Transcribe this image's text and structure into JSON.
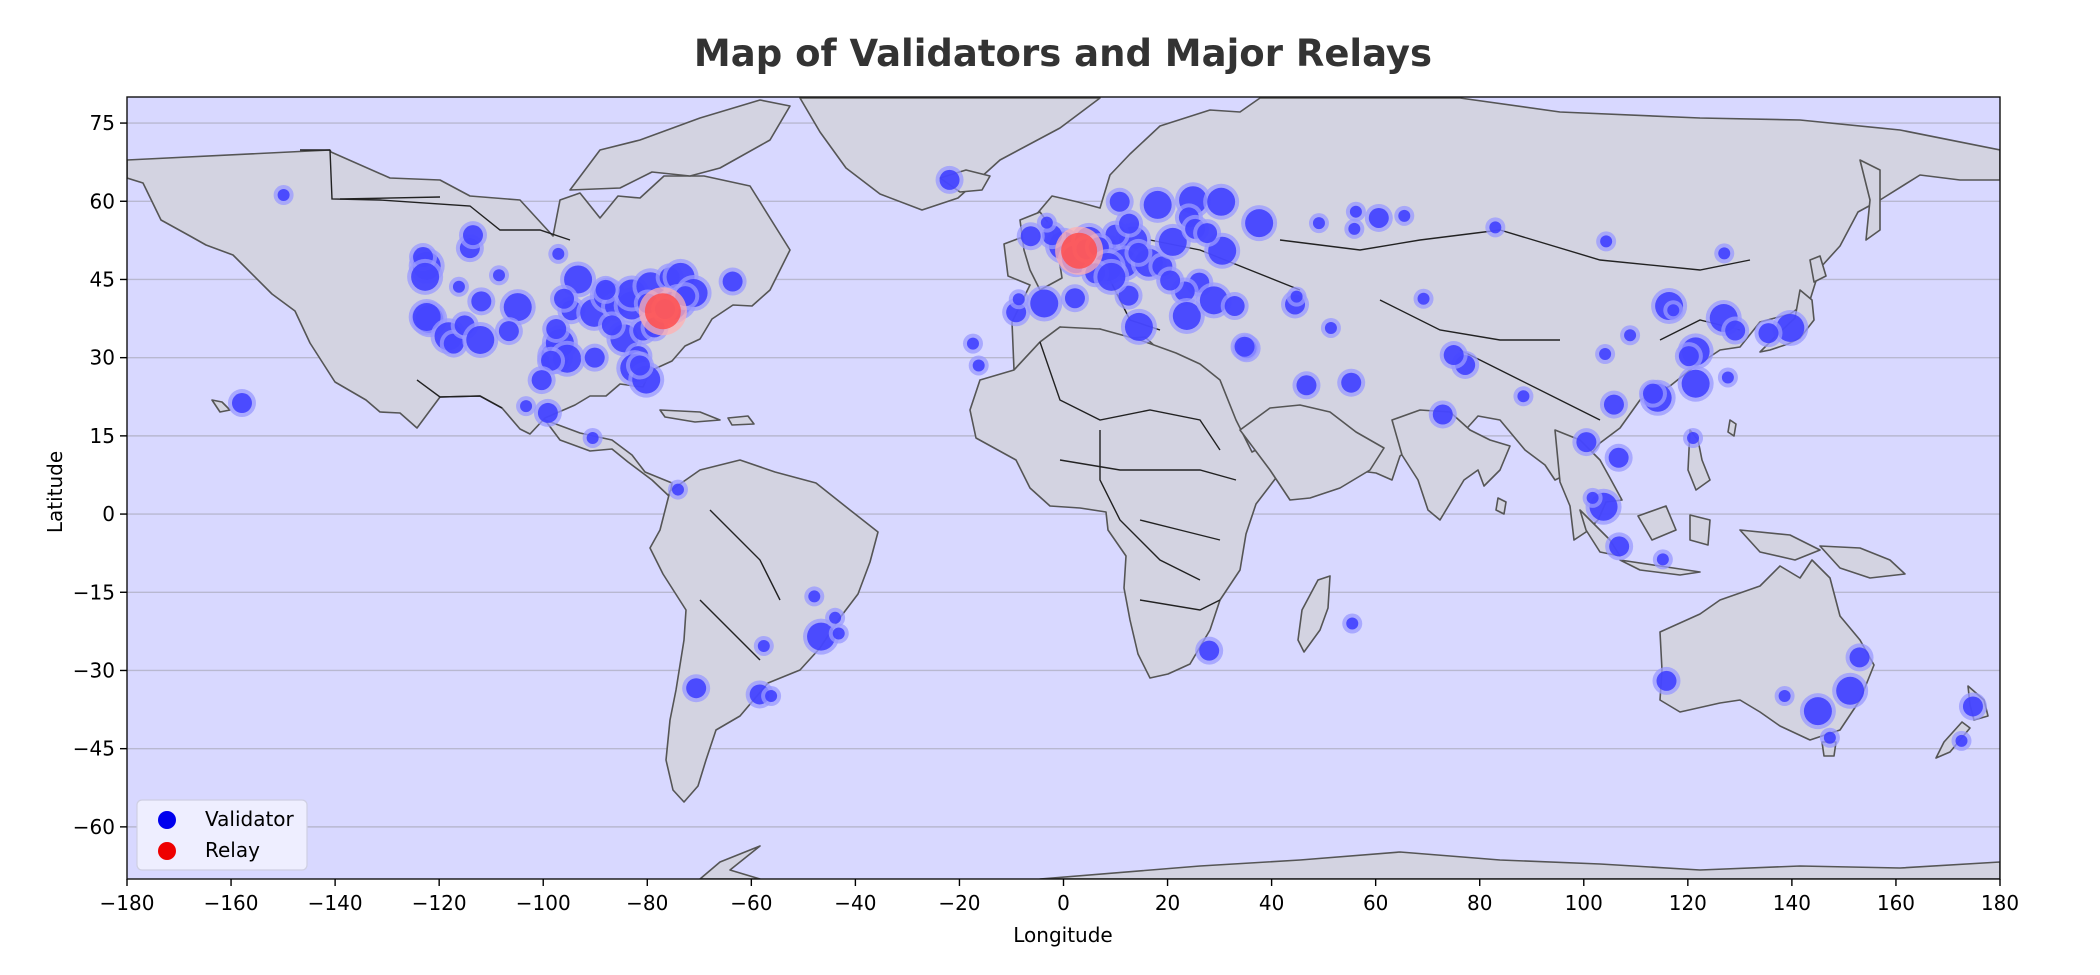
{
  "colors": {
    "ocean": "#d8d8ff",
    "land": "#d3d3e1",
    "validator": "#3b3bff",
    "validator_halo": "#9a9aff",
    "relay": "#ff4d4d",
    "relay_halo": "#ffb0b0"
  },
  "chart_data": {
    "type": "scatter",
    "title": "Map of Validators and Major Relays",
    "xlabel": "Longitude",
    "ylabel": "Latitude",
    "xlim": [
      -180,
      180
    ],
    "ylim": [
      -70,
      80
    ],
    "xticks": [
      -180,
      -160,
      -140,
      -120,
      -100,
      -80,
      -60,
      -40,
      -20,
      0,
      20,
      40,
      60,
      80,
      100,
      120,
      140,
      160,
      180
    ],
    "yticks": [
      75,
      60,
      45,
      30,
      15,
      0,
      -15,
      -30,
      -45,
      -60
    ],
    "xtick_labels": [
      "−180",
      "−160",
      "−140",
      "−120",
      "−100",
      "−80",
      "−60",
      "−40",
      "−20",
      "0",
      "20",
      "40",
      "60",
      "80",
      "100",
      "120",
      "140",
      "160",
      "180"
    ],
    "ytick_labels": [
      "75",
      "60",
      "45",
      "30",
      "15",
      "0",
      "−15",
      "−30",
      "−45",
      "−60"
    ],
    "grid": "horizontal",
    "legend": {
      "position": "lower-left",
      "entries": [
        {
          "label": "Validator",
          "color": "#0000ee"
        },
        {
          "label": "Relay",
          "color": "#ee0000"
        }
      ]
    },
    "series": [
      {
        "name": "Validator",
        "points": [
          {
            "lon": -122.4,
            "lat": 47.6,
            "size": 3
          },
          {
            "lon": -123.1,
            "lat": 49.3,
            "size": 2
          },
          {
            "lon": -122.7,
            "lat": 45.5,
            "size": 3
          },
          {
            "lon": -121.9,
            "lat": 37.4,
            "size": 3
          },
          {
            "lon": -122.4,
            "lat": 37.8,
            "size": 3
          },
          {
            "lon": -118.2,
            "lat": 34.1,
            "size": 3
          },
          {
            "lon": -117.2,
            "lat": 32.7,
            "size": 2
          },
          {
            "lon": -115.1,
            "lat": 36.2,
            "size": 2
          },
          {
            "lon": -112.1,
            "lat": 33.4,
            "size": 3
          },
          {
            "lon": -111.9,
            "lat": 40.8,
            "size": 2
          },
          {
            "lon": -114.1,
            "lat": 51.0,
            "size": 2
          },
          {
            "lon": -113.5,
            "lat": 53.5,
            "size": 2
          },
          {
            "lon": -116.2,
            "lat": 43.6,
            "size": 1
          },
          {
            "lon": -104.9,
            "lat": 39.7,
            "size": 3
          },
          {
            "lon": -106.6,
            "lat": 35.1,
            "size": 2
          },
          {
            "lon": -108.5,
            "lat": 45.8,
            "size": 1
          },
          {
            "lon": -97.7,
            "lat": 30.3,
            "size": 3
          },
          {
            "lon": -96.8,
            "lat": 32.8,
            "size": 3
          },
          {
            "lon": -95.4,
            "lat": 29.8,
            "size": 3
          },
          {
            "lon": -98.5,
            "lat": 29.4,
            "size": 2
          },
          {
            "lon": -97.5,
            "lat": 35.5,
            "size": 2
          },
          {
            "lon": -94.6,
            "lat": 39.1,
            "size": 2
          },
          {
            "lon": -93.3,
            "lat": 45.0,
            "size": 3
          },
          {
            "lon": -97.1,
            "lat": 49.9,
            "size": 1
          },
          {
            "lon": -96.0,
            "lat": 41.3,
            "size": 2
          },
          {
            "lon": -90.2,
            "lat": 38.6,
            "size": 3
          },
          {
            "lon": -87.6,
            "lat": 41.9,
            "size": 3
          },
          {
            "lon": -86.2,
            "lat": 39.8,
            "size": 2
          },
          {
            "lon": -83.0,
            "lat": 40.0,
            "size": 3
          },
          {
            "lon": -83.0,
            "lat": 42.3,
            "size": 3
          },
          {
            "lon": -84.4,
            "lat": 33.7,
            "size": 3
          },
          {
            "lon": -86.8,
            "lat": 36.2,
            "size": 2
          },
          {
            "lon": -90.1,
            "lat": 30.0,
            "size": 2
          },
          {
            "lon": -81.7,
            "lat": 30.3,
            "size": 2
          },
          {
            "lon": -82.5,
            "lat": 28.0,
            "size": 3
          },
          {
            "lon": -80.2,
            "lat": 25.8,
            "size": 3
          },
          {
            "lon": -81.4,
            "lat": 28.5,
            "size": 2
          },
          {
            "lon": -80.8,
            "lat": 35.2,
            "size": 2
          },
          {
            "lon": -79.4,
            "lat": 43.7,
            "size": 3
          },
          {
            "lon": -75.7,
            "lat": 45.4,
            "size": 2
          },
          {
            "lon": -73.6,
            "lat": 45.5,
            "size": 3
          },
          {
            "lon": -74.0,
            "lat": 40.7,
            "size": 3
          },
          {
            "lon": -75.2,
            "lat": 39.9,
            "size": 3
          },
          {
            "lon": -71.1,
            "lat": 42.4,
            "size": 3
          },
          {
            "lon": -79.9,
            "lat": 40.4,
            "size": 2
          },
          {
            "lon": -78.6,
            "lat": 35.8,
            "size": 2
          },
          {
            "lon": -76.6,
            "lat": 39.3,
            "size": 2
          },
          {
            "lon": -72.7,
            "lat": 41.8,
            "size": 2
          },
          {
            "lon": -63.6,
            "lat": 44.6,
            "size": 2
          },
          {
            "lon": -88.0,
            "lat": 43.0,
            "size": 2
          },
          {
            "lon": -157.9,
            "lat": 21.3,
            "size": 2
          },
          {
            "lon": -149.9,
            "lat": 61.2,
            "size": 1
          },
          {
            "lon": -99.1,
            "lat": 19.4,
            "size": 2
          },
          {
            "lon": -103.3,
            "lat": 20.7,
            "size": 1
          },
          {
            "lon": -100.3,
            "lat": 25.7,
            "size": 2
          },
          {
            "lon": -90.5,
            "lat": 14.6,
            "size": 1
          },
          {
            "lon": -74.1,
            "lat": 4.7,
            "size": 1
          },
          {
            "lon": -47.9,
            "lat": -15.8,
            "size": 1
          },
          {
            "lon": -46.6,
            "lat": -23.5,
            "size": 3
          },
          {
            "lon": -43.2,
            "lat": -22.9,
            "size": 1
          },
          {
            "lon": -43.9,
            "lat": -19.9,
            "size": 1
          },
          {
            "lon": -58.4,
            "lat": -34.6,
            "size": 2
          },
          {
            "lon": -56.2,
            "lat": -34.9,
            "size": 1
          },
          {
            "lon": -70.6,
            "lat": -33.4,
            "size": 2
          },
          {
            "lon": -57.6,
            "lat": -25.3,
            "size": 1
          },
          {
            "lon": -21.9,
            "lat": 64.1,
            "size": 2
          },
          {
            "lon": -9.1,
            "lat": 38.7,
            "size": 2
          },
          {
            "lon": -3.7,
            "lat": 40.4,
            "size": 3
          },
          {
            "lon": -8.6,
            "lat": 41.2,
            "size": 1
          },
          {
            "lon": 2.2,
            "lat": 41.4,
            "size": 2
          },
          {
            "lon": -0.1,
            "lat": 51.5,
            "size": 3
          },
          {
            "lon": -2.2,
            "lat": 53.5,
            "size": 2
          },
          {
            "lon": -3.2,
            "lat": 55.9,
            "size": 1
          },
          {
            "lon": -6.3,
            "lat": 53.3,
            "size": 2
          },
          {
            "lon": 2.4,
            "lat": 48.9,
            "size": 3
          },
          {
            "lon": 4.9,
            "lat": 52.4,
            "size": 3
          },
          {
            "lon": 4.4,
            "lat": 50.8,
            "size": 2
          },
          {
            "lon": 8.7,
            "lat": 50.1,
            "size": 3
          },
          {
            "lon": 13.4,
            "lat": 52.5,
            "size": 3
          },
          {
            "lon": 11.6,
            "lat": 48.1,
            "size": 3
          },
          {
            "lon": 10.0,
            "lat": 53.6,
            "size": 2
          },
          {
            "lon": 6.8,
            "lat": 51.2,
            "size": 2
          },
          {
            "lon": 8.5,
            "lat": 47.4,
            "size": 3
          },
          {
            "lon": 6.1,
            "lat": 46.2,
            "size": 2
          },
          {
            "lon": 16.4,
            "lat": 48.2,
            "size": 3
          },
          {
            "lon": 14.4,
            "lat": 50.1,
            "size": 2
          },
          {
            "lon": 19.0,
            "lat": 47.5,
            "size": 2
          },
          {
            "lon": 21.0,
            "lat": 52.2,
            "size": 3
          },
          {
            "lon": 12.6,
            "lat": 55.7,
            "size": 2
          },
          {
            "lon": 18.1,
            "lat": 59.3,
            "size": 3
          },
          {
            "lon": 10.8,
            "lat": 59.9,
            "size": 2
          },
          {
            "lon": 24.9,
            "lat": 60.2,
            "size": 3
          },
          {
            "lon": 24.1,
            "lat": 56.9,
            "size": 2
          },
          {
            "lon": 25.3,
            "lat": 54.7,
            "size": 2
          },
          {
            "lon": 30.5,
            "lat": 50.5,
            "size": 3
          },
          {
            "lon": 26.1,
            "lat": 44.4,
            "size": 2
          },
          {
            "lon": 23.3,
            "lat": 42.7,
            "size": 2
          },
          {
            "lon": 20.5,
            "lat": 44.8,
            "size": 2
          },
          {
            "lon": 23.7,
            "lat": 38.0,
            "size": 3
          },
          {
            "lon": 12.5,
            "lat": 41.9,
            "size": 2
          },
          {
            "lon": 9.2,
            "lat": 45.5,
            "size": 3
          },
          {
            "lon": 14.5,
            "lat": 35.9,
            "size": 3
          },
          {
            "lon": 28.9,
            "lat": 41.0,
            "size": 3
          },
          {
            "lon": 32.9,
            "lat": 39.9,
            "size": 2
          },
          {
            "lon": 37.6,
            "lat": 55.8,
            "size": 3
          },
          {
            "lon": 30.3,
            "lat": 59.9,
            "size": 3
          },
          {
            "lon": 27.6,
            "lat": 53.9,
            "size": 2
          },
          {
            "lon": 44.5,
            "lat": 40.2,
            "size": 2
          },
          {
            "lon": 44.8,
            "lat": 41.7,
            "size": 1
          },
          {
            "lon": 49.1,
            "lat": 55.8,
            "size": 1
          },
          {
            "lon": 35.2,
            "lat": 31.8,
            "size": 2
          },
          {
            "lon": 34.8,
            "lat": 32.1,
            "size": 2
          },
          {
            "lon": 46.7,
            "lat": 24.7,
            "size": 2
          },
          {
            "lon": 55.3,
            "lat": 25.2,
            "size": 2
          },
          {
            "lon": 51.4,
            "lat": 35.7,
            "size": 1
          },
          {
            "lon": 69.2,
            "lat": 41.3,
            "size": 1
          },
          {
            "lon": 60.6,
            "lat": 56.8,
            "size": 2
          },
          {
            "lon": 56.2,
            "lat": 58.0,
            "size": 1
          },
          {
            "lon": 55.9,
            "lat": 54.7,
            "size": 1
          },
          {
            "lon": 65.5,
            "lat": 57.2,
            "size": 1
          },
          {
            "lon": 83.0,
            "lat": 55.0,
            "size": 1
          },
          {
            "lon": 104.3,
            "lat": 52.3,
            "size": 1
          },
          {
            "lon": 77.2,
            "lat": 28.6,
            "size": 2
          },
          {
            "lon": 72.9,
            "lat": 19.1,
            "size": 2
          },
          {
            "lon": 88.4,
            "lat": 22.6,
            "size": 1
          },
          {
            "lon": 75.0,
            "lat": 30.5,
            "size": 2
          },
          {
            "lon": 100.5,
            "lat": 13.8,
            "size": 2
          },
          {
            "lon": 103.8,
            "lat": 1.4,
            "size": 3
          },
          {
            "lon": 101.7,
            "lat": 3.1,
            "size": 1
          },
          {
            "lon": 106.8,
            "lat": -6.2,
            "size": 2
          },
          {
            "lon": 115.2,
            "lat": -8.7,
            "size": 1
          },
          {
            "lon": 106.7,
            "lat": 10.8,
            "size": 2
          },
          {
            "lon": 105.8,
            "lat": 21.0,
            "size": 2
          },
          {
            "lon": 121.0,
            "lat": 14.6,
            "size": 1
          },
          {
            "lon": 114.2,
            "lat": 22.3,
            "size": 3
          },
          {
            "lon": 113.3,
            "lat": 23.1,
            "size": 2
          },
          {
            "lon": 121.5,
            "lat": 25.0,
            "size": 3
          },
          {
            "lon": 121.5,
            "lat": 31.2,
            "size": 3
          },
          {
            "lon": 120.2,
            "lat": 30.3,
            "size": 2
          },
          {
            "lon": 116.4,
            "lat": 39.9,
            "size": 3
          },
          {
            "lon": 117.2,
            "lat": 39.1,
            "size": 1
          },
          {
            "lon": 104.1,
            "lat": 30.7,
            "size": 1
          },
          {
            "lon": 108.9,
            "lat": 34.3,
            "size": 1
          },
          {
            "lon": 126.9,
            "lat": 37.6,
            "size": 3
          },
          {
            "lon": 129.1,
            "lat": 35.2,
            "size": 2
          },
          {
            "lon": 127.7,
            "lat": 26.2,
            "size": 1
          },
          {
            "lon": 139.7,
            "lat": 35.7,
            "size": 3
          },
          {
            "lon": 135.5,
            "lat": 34.7,
            "size": 2
          },
          {
            "lon": 127.0,
            "lat": 50.0,
            "size": 1
          },
          {
            "lon": 151.2,
            "lat": -33.9,
            "size": 3
          },
          {
            "lon": 153.0,
            "lat": -27.5,
            "size": 2
          },
          {
            "lon": 145.0,
            "lat": -37.8,
            "size": 3
          },
          {
            "lon": 138.6,
            "lat": -34.9,
            "size": 1
          },
          {
            "lon": 147.3,
            "lat": -42.9,
            "size": 1
          },
          {
            "lon": 115.9,
            "lat": -32.0,
            "size": 2
          },
          {
            "lon": 174.8,
            "lat": -36.9,
            "size": 2
          },
          {
            "lon": 172.6,
            "lat": -43.5,
            "size": 1
          },
          {
            "lon": 28.0,
            "lat": -26.2,
            "size": 2
          },
          {
            "lon": 55.5,
            "lat": -21.0,
            "size": 1
          },
          {
            "lon": -17.4,
            "lat": 32.7,
            "size": 1
          },
          {
            "lon": -16.3,
            "lat": 28.5,
            "size": 1
          }
        ]
      },
      {
        "name": "Relay",
        "points": [
          {
            "lon": -77.0,
            "lat": 38.9,
            "size": 4
          },
          {
            "lon": 3.0,
            "lat": 50.5,
            "size": 4
          }
        ]
      }
    ]
  }
}
